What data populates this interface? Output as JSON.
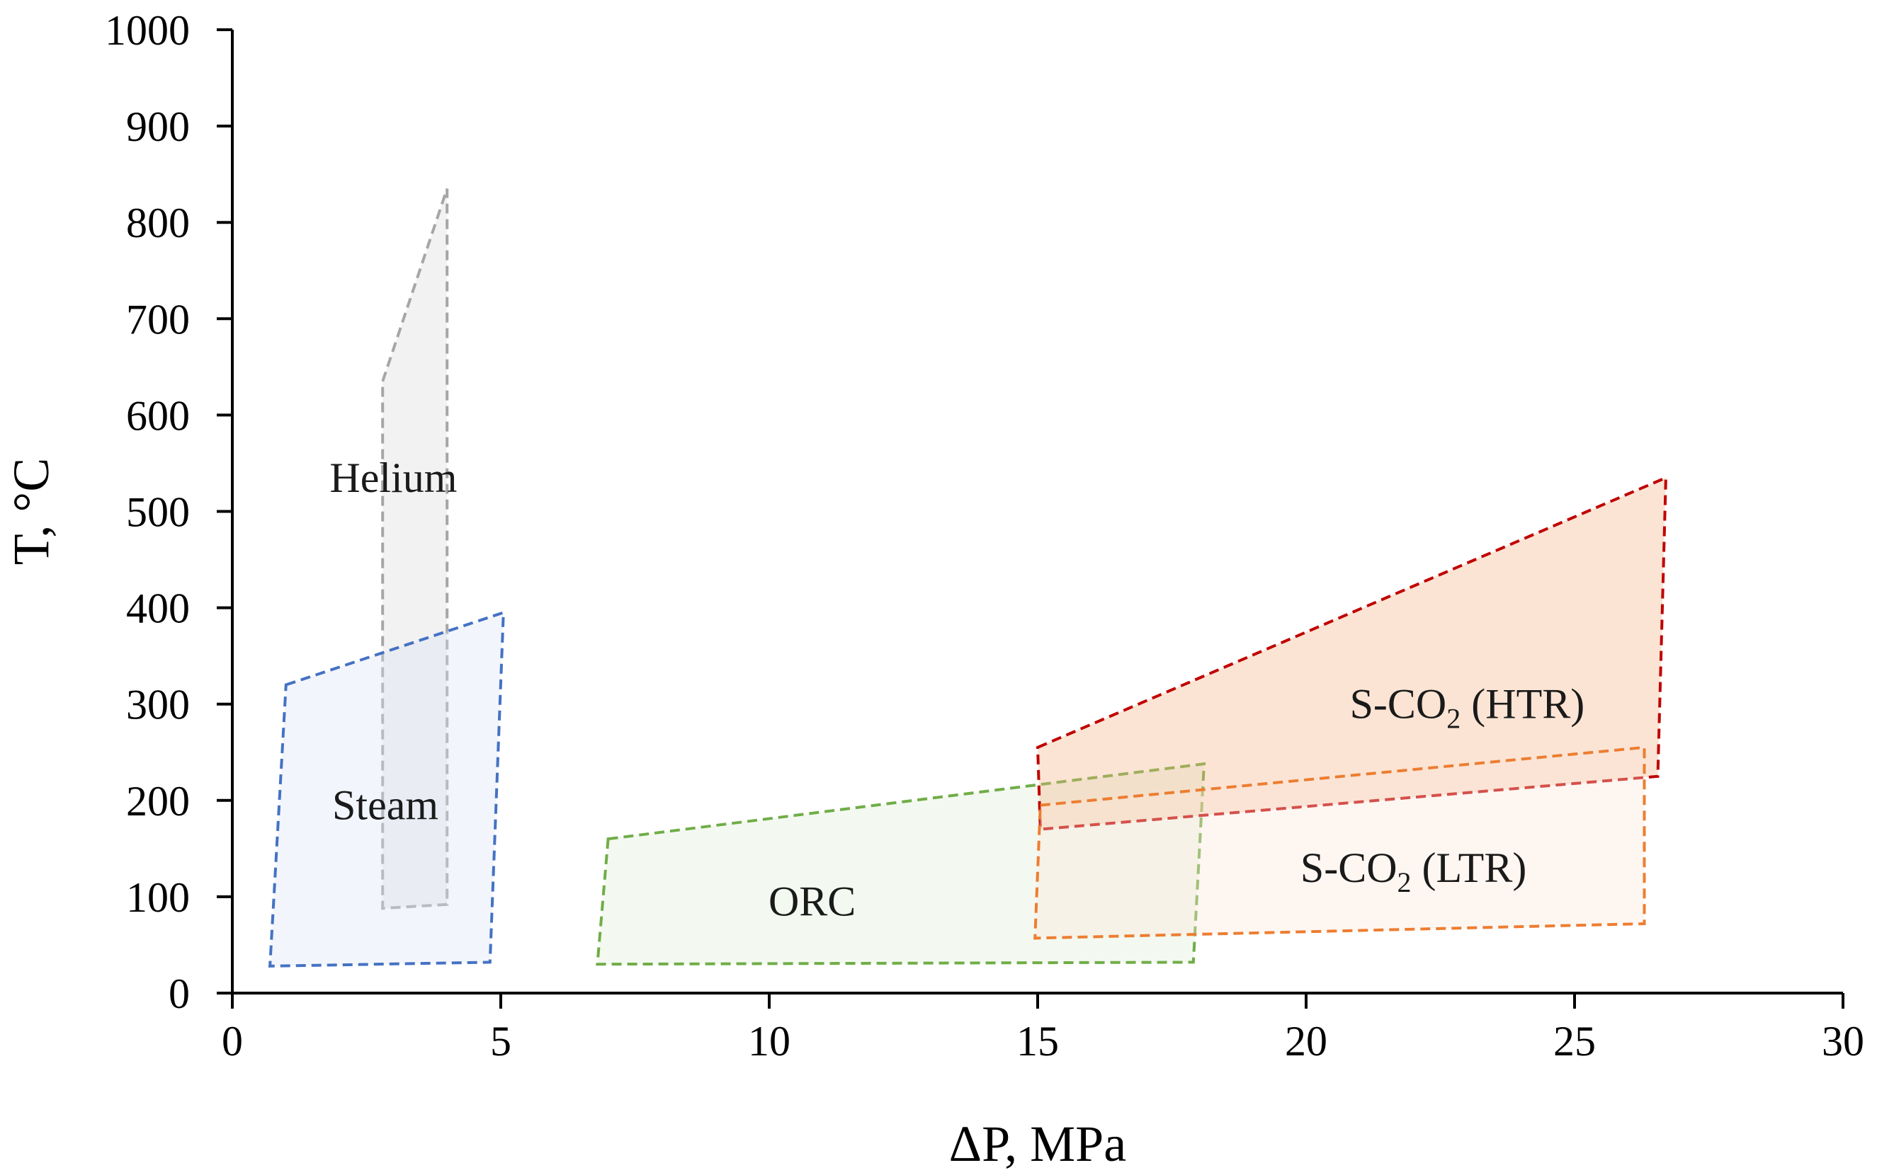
{
  "chart_data": {
    "type": "area",
    "title": "",
    "xlabel": "ΔP, MPa",
    "ylabel": "T, °C",
    "xlim": [
      0,
      30
    ],
    "ylim": [
      0,
      1000
    ],
    "xticks": [
      "0",
      "5",
      "10",
      "15",
      "20",
      "25",
      "30"
    ],
    "yticks": [
      "0",
      "100",
      "200",
      "300",
      "400",
      "500",
      "600",
      "700",
      "800",
      "900",
      "1000"
    ],
    "grid": false,
    "regions": [
      {
        "name": "Helium",
        "label": "Helium",
        "label_at": [
          3.0,
          535
        ],
        "stroke": "#a6a6a6",
        "fill": "#e6e6e6",
        "fill_opacity": 0.5,
        "points": [
          [
            2.8,
            635
          ],
          [
            4.0,
            835
          ],
          [
            4.0,
            92
          ],
          [
            2.8,
            88
          ]
        ]
      },
      {
        "name": "Steam",
        "label": "Steam",
        "label_at": [
          2.85,
          195
        ],
        "stroke": "#4472c4",
        "fill": "#dae3f3",
        "fill_opacity": 0.35,
        "points": [
          [
            1.0,
            320
          ],
          [
            5.05,
            395
          ],
          [
            4.8,
            32
          ],
          [
            0.7,
            28
          ]
        ]
      },
      {
        "name": "ORC",
        "label": "ORC",
        "label_at": [
          10.8,
          95
        ],
        "stroke": "#70ad47",
        "fill": "#e2efda",
        "fill_opacity": 0.4,
        "points": [
          [
            7.0,
            160
          ],
          [
            18.1,
            238
          ],
          [
            17.9,
            32
          ],
          [
            6.8,
            30
          ]
        ]
      },
      {
        "name": "S-CO2 (HTR)",
        "label": "S-CO",
        "label_sub": "2",
        "label_tail": " (HTR)",
        "label_at": [
          23.0,
          300
        ],
        "stroke": "#c00000",
        "fill": "#f4b183",
        "fill_opacity": 0.35,
        "points": [
          [
            15.0,
            255
          ],
          [
            26.7,
            535
          ],
          [
            26.55,
            225
          ],
          [
            15.05,
            170
          ]
        ]
      },
      {
        "name": "S-CO2 (LTR)",
        "label": "S-CO",
        "label_sub": "2",
        "label_tail": " (LTR)",
        "label_at": [
          22.0,
          130
        ],
        "stroke": "#ed7d31",
        "fill": "#fbe5d6",
        "fill_opacity": 0.35,
        "points": [
          [
            15.05,
            195
          ],
          [
            26.3,
            255
          ],
          [
            26.3,
            72
          ],
          [
            14.95,
            57
          ]
        ]
      }
    ]
  }
}
